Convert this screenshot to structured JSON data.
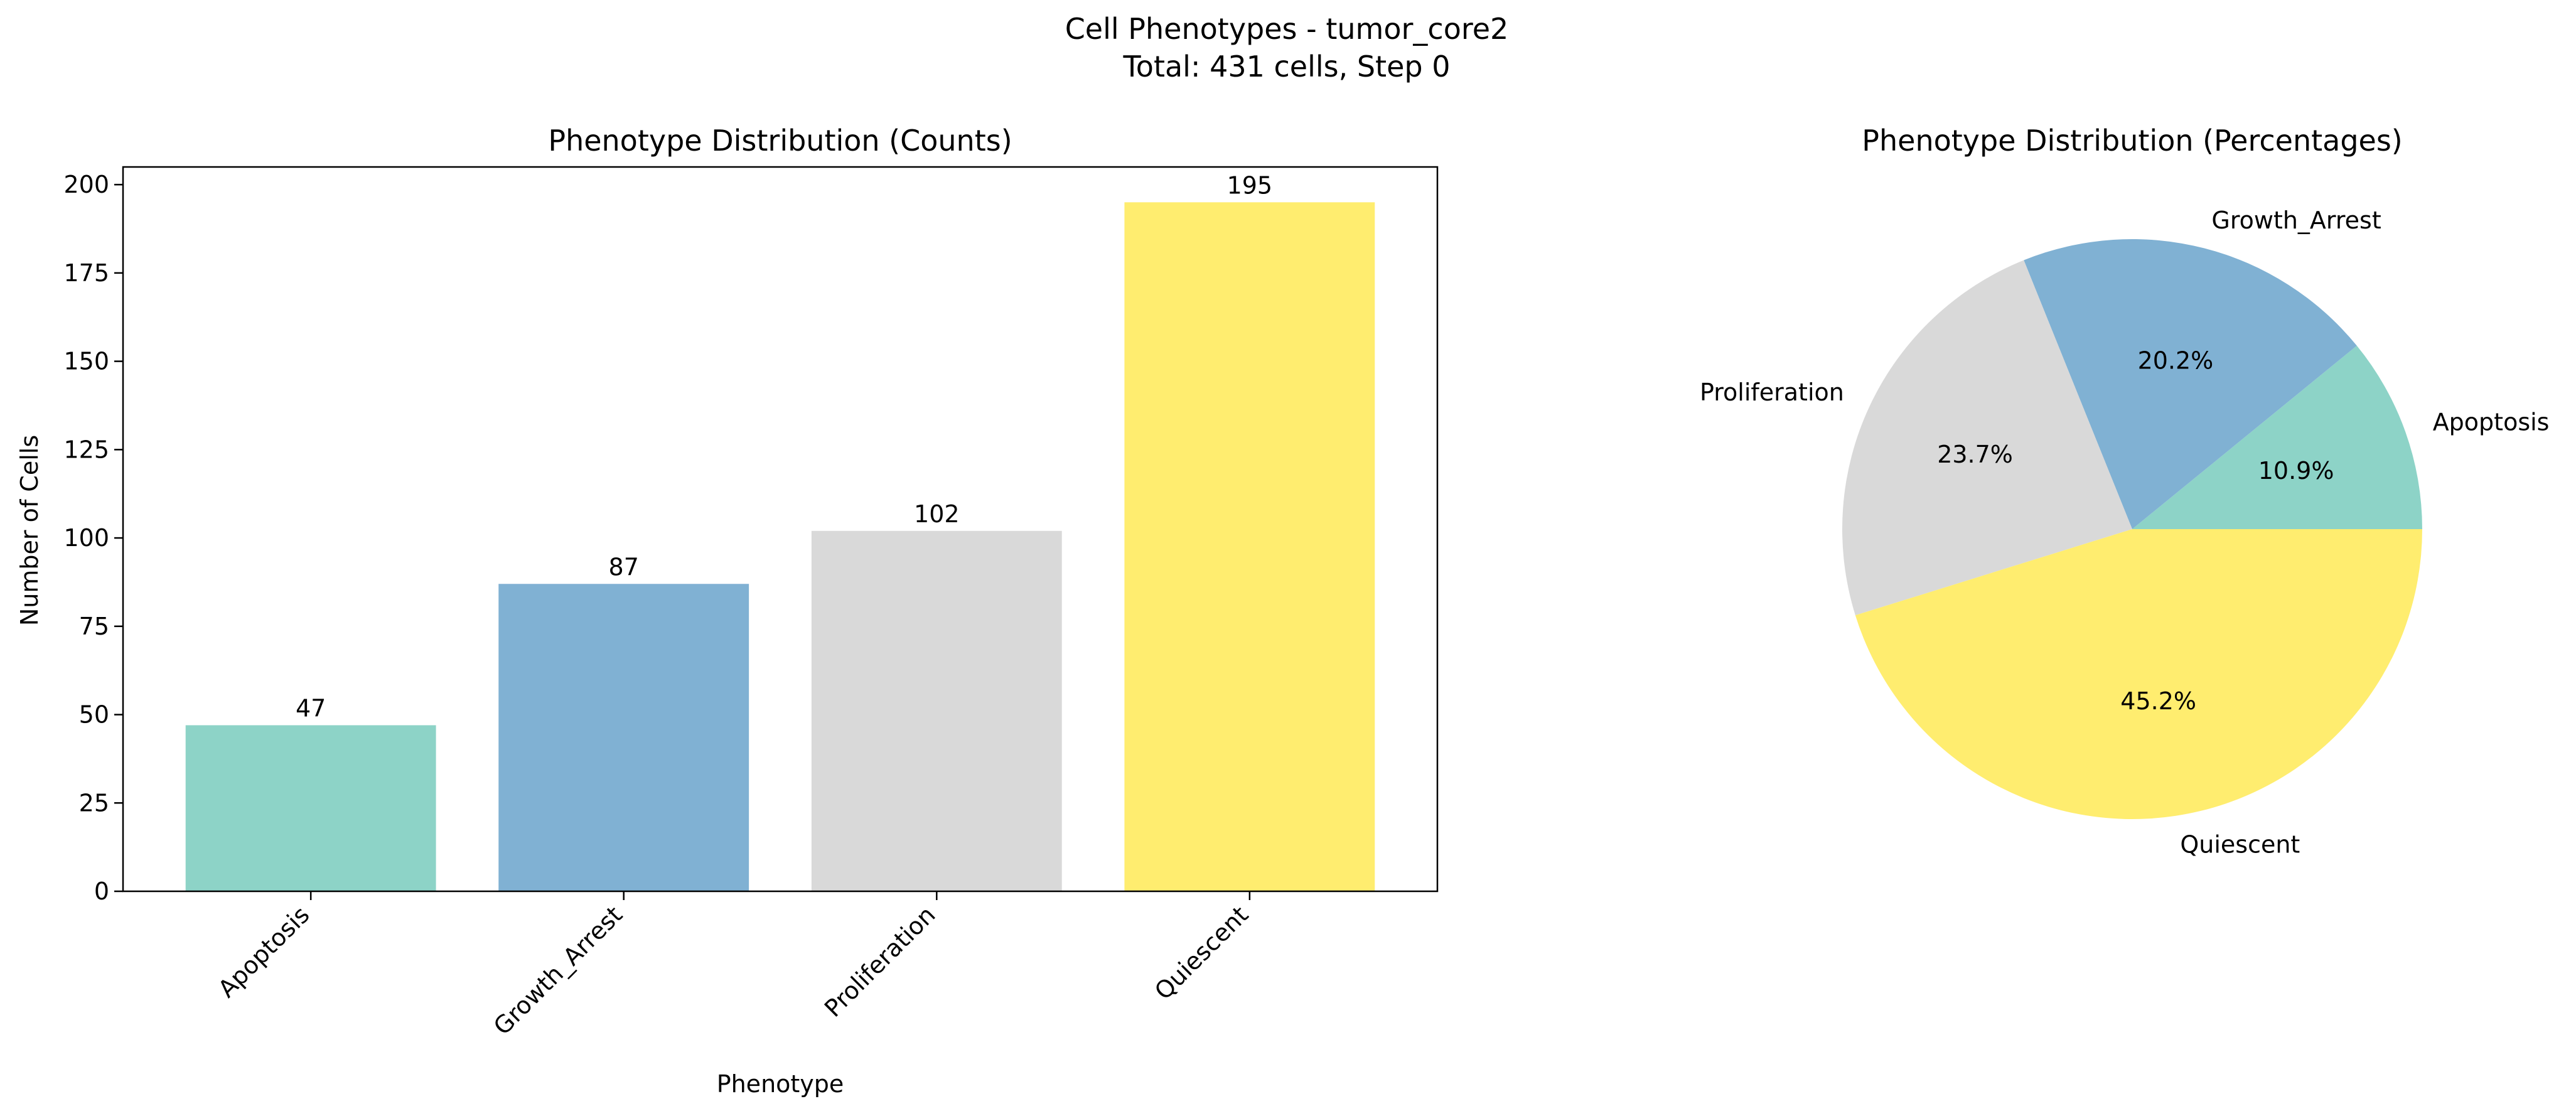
{
  "figure": {
    "title_line1": "Cell Phenotypes - tumor_core2",
    "title_line2": "Total: 431 cells, Step 0"
  },
  "chart_data": [
    {
      "type": "bar",
      "title": "Phenotype Distribution (Counts)",
      "xlabel": "Phenotype",
      "ylabel": "Number of Cells",
      "categories": [
        "Apoptosis",
        "Growth_Arrest",
        "Proliferation",
        "Quiescent"
      ],
      "values": [
        47,
        87,
        102,
        195
      ],
      "value_labels": [
        "47",
        "87",
        "102",
        "195"
      ],
      "colors": [
        "#8dd3c7",
        "#80b1d3",
        "#d9d9d9",
        "#ffed6f"
      ],
      "ylim": [
        0,
        205
      ],
      "yticks": [
        0,
        25,
        50,
        75,
        100,
        125,
        150,
        175,
        200
      ],
      "grid": false,
      "legend": "none"
    },
    {
      "type": "pie",
      "title": "Phenotype Distribution (Percentages)",
      "labels": [
        "Apoptosis",
        "Growth_Arrest",
        "Proliferation",
        "Quiescent"
      ],
      "values": [
        10.9,
        20.2,
        23.7,
        45.2
      ],
      "pct_labels": [
        "10.9%",
        "20.2%",
        "23.7%",
        "45.2%"
      ],
      "colors": [
        "#8dd3c7",
        "#80b1d3",
        "#d9d9d9",
        "#ffed6f"
      ],
      "start_angle_deg": 0,
      "direction": "counterclockwise"
    }
  ]
}
